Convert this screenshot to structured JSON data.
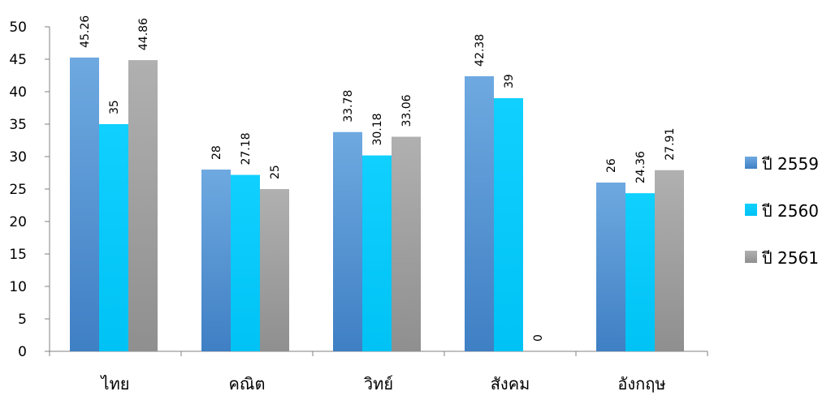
{
  "chart_data": {
    "type": "bar",
    "categories": [
      "ไทย",
      "คณิต",
      "วิทย์",
      "สังคม",
      "อังกฤษ"
    ],
    "series": [
      {
        "name": "ปี 2559",
        "values": [
          45.26,
          28,
          33.78,
          42.38,
          26
        ],
        "color": "#4f8fd3"
      },
      {
        "name": "ปี 2560",
        "values": [
          35,
          27.18,
          30.18,
          39,
          24.36
        ],
        "color": "#00c8f8"
      },
      {
        "name": "ปี 2561",
        "values": [
          44.86,
          25,
          33.06,
          0,
          27.91
        ],
        "color": "#a2a2a2"
      }
    ],
    "data_labels": [
      [
        "45.26",
        "28",
        "33.78",
        "42.38",
        "26"
      ],
      [
        "35",
        "27.18",
        "30.18",
        "39",
        "24.36"
      ],
      [
        "44.86",
        "25",
        "33.06",
        "0",
        "27.91"
      ]
    ],
    "y_ticks": [
      "0",
      "5",
      "10",
      "15",
      "20",
      "25",
      "30",
      "35",
      "40",
      "45",
      "50"
    ],
    "ylim": [
      0,
      50
    ],
    "grid": false,
    "legend_position": "right"
  }
}
